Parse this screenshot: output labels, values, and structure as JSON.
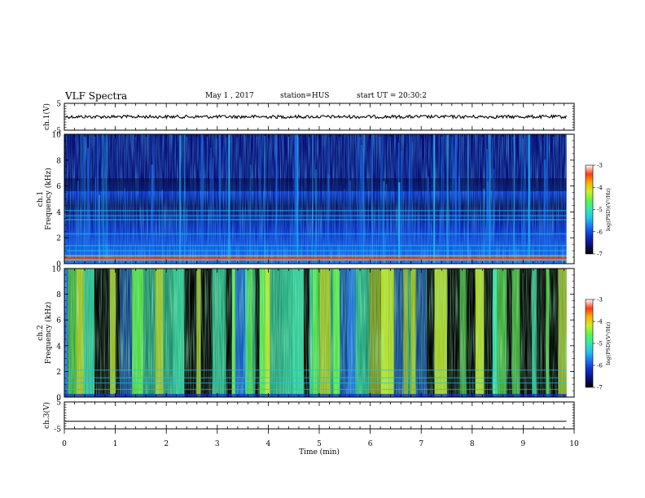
{
  "header": {
    "title": "VLF Spectra",
    "date": "May 1 , 2017",
    "station": "station=HUS",
    "start_ut": "start UT = 20:30:2"
  },
  "colors": {
    "colormap": [
      "#000000",
      "#0a0f7a",
      "#0b2fc8",
      "#1a6ff0",
      "#22c0f0",
      "#34e8b0",
      "#5af54a",
      "#c8f028",
      "#ffb400",
      "#ff3c14",
      "#ffffff"
    ],
    "line": "#000000"
  },
  "chart_data": [
    {
      "type": "line",
      "ylabel": "ch.1(V)",
      "ylim": [
        -5,
        5
      ],
      "yticks": [
        "5",
        "-5"
      ],
      "series": [
        {
          "values": [
            0,
            0
          ]
        }
      ]
    },
    {
      "type": "heatmap",
      "ylabel_top": "ch.1",
      "ylabel": "Frequency (kHz)",
      "ylim": [
        0,
        10
      ],
      "yticks": [
        "10",
        "8",
        "6",
        "4",
        "2",
        "0"
      ],
      "colorbar": {
        "label": "log(PSD)(V²/Hz)",
        "range": [
          -7,
          -3
        ],
        "ticks": [
          "-3",
          "-4",
          "-5",
          "-6",
          "-7"
        ]
      },
      "bright_lines_khz": [
        0.3,
        0.6,
        1.0,
        1.4,
        2.3,
        3.4,
        3.7,
        4.1
      ]
    },
    {
      "type": "heatmap",
      "ylabel_top": "ch.2",
      "ylabel": "Frequency (kHz)",
      "ylim": [
        0,
        10
      ],
      "yticks": [
        "10",
        "8",
        "6",
        "4",
        "2",
        "0"
      ],
      "colorbar": {
        "label": "log(PSD)(V²/Hz)",
        "range": [
          -7,
          -3
        ],
        "ticks": [
          "-3",
          "-4",
          "-5",
          "-6",
          "-7"
        ]
      }
    },
    {
      "type": "line",
      "ylabel": "ch.3(V)",
      "ylim": [
        -5,
        5
      ],
      "yticks": [
        "5",
        "-5"
      ],
      "series": [
        {
          "values": [
            -2.2,
            -2.2
          ]
        }
      ]
    }
  ],
  "xaxis": {
    "label": "Time (min)",
    "range": [
      0,
      10
    ],
    "ticks": [
      "0",
      "1",
      "2",
      "3",
      "4",
      "5",
      "6",
      "7",
      "8",
      "9",
      "10"
    ],
    "data_end": 9.85
  }
}
